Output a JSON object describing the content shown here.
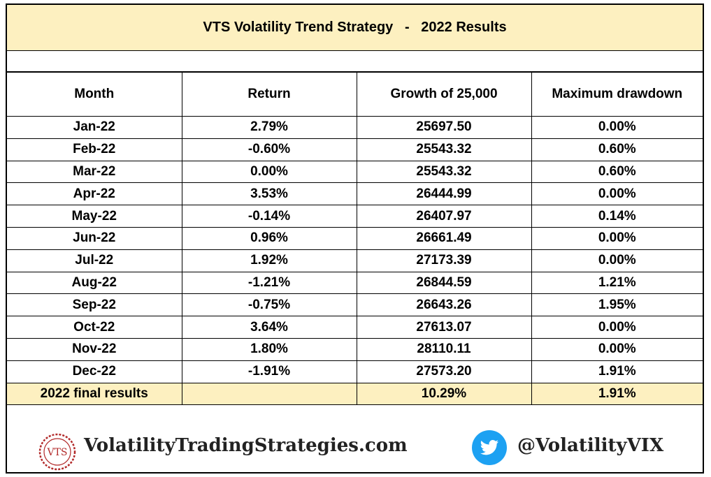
{
  "title": "VTS Volatility Trend Strategy   -   2022 Results",
  "table": {
    "headers": [
      "Month",
      "Return",
      "Growth of 25,000",
      "Maximum drawdown"
    ],
    "rows": [
      [
        "Jan-22",
        "2.79%",
        "25697.50",
        "0.00%"
      ],
      [
        "Feb-22",
        "-0.60%",
        "25543.32",
        "0.60%"
      ],
      [
        "Mar-22",
        "0.00%",
        "25543.32",
        "0.60%"
      ],
      [
        "Apr-22",
        "3.53%",
        "26444.99",
        "0.00%"
      ],
      [
        "May-22",
        "-0.14%",
        "26407.97",
        "0.14%"
      ],
      [
        "Jun-22",
        "0.96%",
        "26661.49",
        "0.00%"
      ],
      [
        "Jul-22",
        "1.92%",
        "27173.39",
        "0.00%"
      ],
      [
        "Aug-22",
        "-1.21%",
        "26844.59",
        "1.21%"
      ],
      [
        "Sep-22",
        "-0.75%",
        "26643.26",
        "1.95%"
      ],
      [
        "Oct-22",
        "3.64%",
        "27613.07",
        "0.00%"
      ],
      [
        "Nov-22",
        "1.80%",
        "28110.11",
        "0.00%"
      ],
      [
        "Dec-22",
        "-1.91%",
        "27573.20",
        "1.91%"
      ]
    ],
    "final": {
      "label": "2022 final results",
      "return": "",
      "growth": "10.29%",
      "drawdown": "1.91%"
    }
  },
  "footer": {
    "logo_text": "VTS",
    "site": "VolatilityTradingStrategies.com",
    "twitter_handle": "@VolatilityVIX",
    "twitter_color": "#1da1f2",
    "logo_color": "#b22a2a"
  }
}
